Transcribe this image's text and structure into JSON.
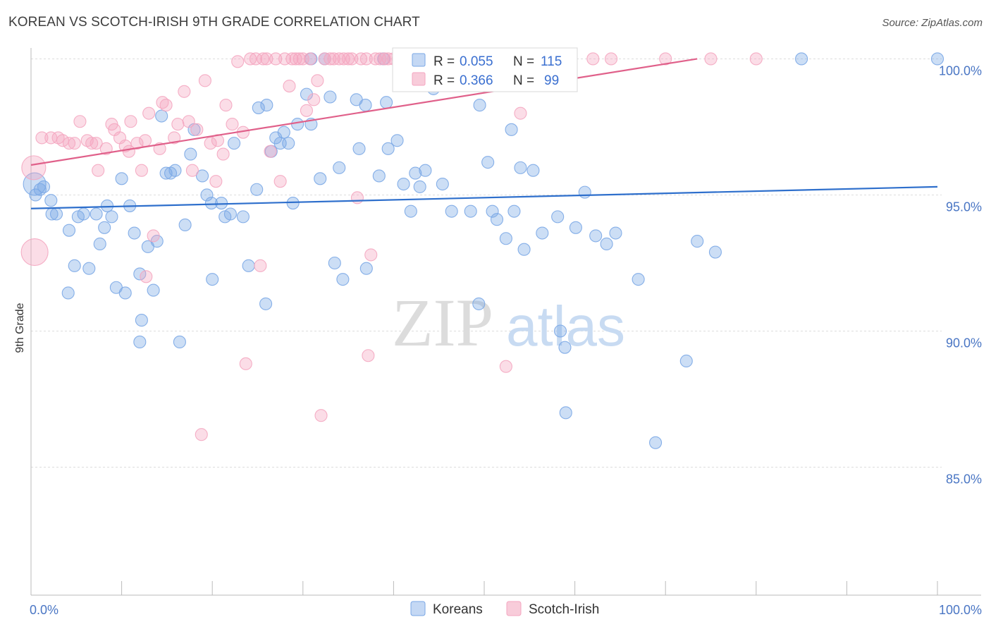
{
  "title": "KOREAN VS SCOTCH-IRISH 9TH GRADE CORRELATION CHART",
  "source": "Source: ZipAtlas.com",
  "watermark": {
    "zip": "ZIP",
    "atlas": "atlas"
  },
  "chart_data": {
    "type": "scatter",
    "xlabel": "",
    "ylabel": "9th Grade",
    "xlim": [
      0,
      100
    ],
    "ylim": [
      80.3,
      100.4
    ],
    "x_tick_labels": [
      {
        "value": 0,
        "label": "0.0%"
      },
      {
        "value": 100,
        "label": "100.0%"
      }
    ],
    "y_ticks": [
      {
        "value": 100,
        "label": "100.0%"
      },
      {
        "value": 95,
        "label": "95.0%"
      },
      {
        "value": 90,
        "label": "90.0%"
      },
      {
        "value": 85,
        "label": "85.0%"
      }
    ],
    "grid": true,
    "legend": {
      "placement": "top-center",
      "rows": [
        {
          "r_label": "R =",
          "r_value": "0.055",
          "n_label": "N =",
          "n_value": "115"
        },
        {
          "r_label": "R =",
          "r_value": "0.366",
          "n_label": "N =",
          "n_value": "99"
        }
      ]
    },
    "series": [
      {
        "name": "Koreans",
        "color": "#7aa7e6",
        "line_color": "#2e6fcc",
        "trend": {
          "x0": 0,
          "y0": 94.5,
          "x1": 100,
          "y1": 95.3
        },
        "points": [
          [
            0.4,
            95.4
          ],
          [
            0.5,
            95.0
          ],
          [
            1.0,
            95.2
          ],
          [
            1.4,
            95.3
          ],
          [
            2.2,
            94.8
          ],
          [
            2.3,
            94.3
          ],
          [
            2.8,
            94.3
          ],
          [
            4.2,
            93.7
          ],
          [
            4.8,
            92.4
          ],
          [
            4.1,
            91.4
          ],
          [
            5.2,
            94.2
          ],
          [
            5.8,
            94.3
          ],
          [
            6.4,
            92.3
          ],
          [
            7.2,
            94.3
          ],
          [
            7.6,
            93.2
          ],
          [
            8.1,
            93.8
          ],
          [
            8.4,
            94.6
          ],
          [
            8.9,
            94.2
          ],
          [
            9.4,
            91.6
          ],
          [
            10.0,
            95.6
          ],
          [
            10.4,
            91.4
          ],
          [
            10.9,
            94.6
          ],
          [
            11.4,
            93.6
          ],
          [
            12.0,
            92.1
          ],
          [
            12.2,
            90.4
          ],
          [
            12.0,
            89.6
          ],
          [
            12.9,
            93.1
          ],
          [
            13.5,
            91.5
          ],
          [
            13.9,
            93.3
          ],
          [
            14.4,
            97.9
          ],
          [
            14.9,
            95.8
          ],
          [
            15.4,
            95.8
          ],
          [
            15.9,
            95.9
          ],
          [
            16.4,
            89.6
          ],
          [
            17.0,
            93.9
          ],
          [
            17.6,
            96.5
          ],
          [
            18.0,
            97.4
          ],
          [
            18.9,
            95.7
          ],
          [
            19.4,
            95.0
          ],
          [
            19.9,
            94.7
          ],
          [
            20.0,
            91.9
          ],
          [
            21.0,
            94.7
          ],
          [
            21.4,
            94.2
          ],
          [
            22.0,
            94.3
          ],
          [
            22.4,
            96.9
          ],
          [
            23.4,
            94.2
          ],
          [
            24.0,
            92.4
          ],
          [
            24.9,
            95.2
          ],
          [
            25.1,
            98.2
          ],
          [
            25.9,
            91.0
          ],
          [
            26.0,
            98.3
          ],
          [
            26.5,
            96.6
          ],
          [
            27.0,
            97.1
          ],
          [
            27.5,
            96.9
          ],
          [
            27.9,
            97.3
          ],
          [
            28.4,
            96.9
          ],
          [
            28.9,
            94.7
          ],
          [
            29.4,
            97.6
          ],
          [
            30.4,
            98.7
          ],
          [
            30.9,
            97.6
          ],
          [
            30.9,
            100.0
          ],
          [
            31.9,
            95.6
          ],
          [
            32.4,
            100.0
          ],
          [
            33.0,
            98.6
          ],
          [
            33.5,
            92.5
          ],
          [
            34.0,
            96.0
          ],
          [
            34.4,
            91.9
          ],
          [
            35.9,
            98.5
          ],
          [
            36.2,
            96.7
          ],
          [
            36.9,
            98.3
          ],
          [
            37.0,
            92.3
          ],
          [
            38.4,
            95.7
          ],
          [
            38.9,
            100.0
          ],
          [
            39.2,
            98.4
          ],
          [
            39.4,
            96.7
          ],
          [
            40.4,
            97.0
          ],
          [
            40.9,
            100.0
          ],
          [
            41.1,
            95.4
          ],
          [
            41.9,
            94.4
          ],
          [
            42.4,
            95.8
          ],
          [
            42.9,
            95.3
          ],
          [
            43.5,
            95.9
          ],
          [
            44.4,
            98.9
          ],
          [
            45.4,
            95.4
          ],
          [
            46.4,
            94.4
          ],
          [
            48.5,
            94.4
          ],
          [
            49.4,
            91.0
          ],
          [
            49.5,
            98.3
          ],
          [
            50.4,
            96.2
          ],
          [
            50.9,
            94.4
          ],
          [
            51.4,
            94.1
          ],
          [
            52.4,
            93.4
          ],
          [
            53.3,
            94.4
          ],
          [
            54.0,
            96.0
          ],
          [
            54.4,
            93.0
          ],
          [
            55.4,
            95.9
          ],
          [
            55.8,
            100.0
          ],
          [
            56.4,
            93.6
          ],
          [
            58.1,
            94.2
          ],
          [
            58.4,
            90.0
          ],
          [
            58.9,
            89.4
          ],
          [
            59.0,
            87.0
          ],
          [
            60.1,
            93.8
          ],
          [
            61.1,
            95.1
          ],
          [
            62.3,
            93.5
          ],
          [
            63.5,
            93.2
          ],
          [
            64.5,
            93.6
          ],
          [
            67.0,
            91.9
          ],
          [
            68.9,
            85.9
          ],
          [
            72.3,
            88.9
          ],
          [
            73.5,
            93.3
          ],
          [
            75.5,
            92.9
          ],
          [
            85.0,
            100.0
          ],
          [
            100.0,
            100.0
          ],
          [
            53.0,
            97.4
          ]
        ]
      },
      {
        "name": "Scotch-Irish",
        "color": "#f4a6c0",
        "line_color": "#e0608a",
        "trend": {
          "x0": 0,
          "y0": 96.1,
          "x1": 73.5,
          "y1": 100.0
        },
        "points": [
          [
            0.3,
            96.0
          ],
          [
            0.4,
            92.9
          ],
          [
            1.2,
            97.1
          ],
          [
            2.2,
            97.1
          ],
          [
            3.0,
            97.1
          ],
          [
            3.5,
            97.0
          ],
          [
            4.2,
            96.9
          ],
          [
            4.8,
            96.9
          ],
          [
            5.4,
            97.7
          ],
          [
            6.2,
            97.0
          ],
          [
            6.7,
            96.9
          ],
          [
            7.2,
            96.9
          ],
          [
            7.4,
            95.9
          ],
          [
            8.3,
            96.7
          ],
          [
            8.9,
            97.6
          ],
          [
            9.2,
            97.4
          ],
          [
            9.8,
            97.1
          ],
          [
            10.4,
            96.8
          ],
          [
            10.8,
            96.6
          ],
          [
            11.0,
            97.7
          ],
          [
            11.7,
            96.9
          ],
          [
            12.2,
            95.9
          ],
          [
            12.6,
            97.0
          ],
          [
            12.7,
            92.0
          ],
          [
            13.0,
            98.0
          ],
          [
            13.5,
            93.5
          ],
          [
            14.2,
            96.7
          ],
          [
            14.5,
            98.4
          ],
          [
            14.9,
            98.3
          ],
          [
            15.8,
            97.1
          ],
          [
            16.2,
            97.6
          ],
          [
            16.9,
            98.8
          ],
          [
            17.4,
            97.7
          ],
          [
            17.8,
            95.9
          ],
          [
            18.3,
            97.4
          ],
          [
            18.8,
            86.2
          ],
          [
            19.2,
            99.2
          ],
          [
            19.8,
            96.9
          ],
          [
            20.4,
            95.5
          ],
          [
            20.6,
            97.0
          ],
          [
            21.2,
            96.5
          ],
          [
            21.5,
            98.3
          ],
          [
            22.2,
            97.6
          ],
          [
            22.8,
            99.9
          ],
          [
            23.4,
            97.3
          ],
          [
            23.7,
            88.8
          ],
          [
            24.2,
            100.0
          ],
          [
            24.8,
            100.0
          ],
          [
            25.3,
            92.4
          ],
          [
            25.6,
            100.0
          ],
          [
            26.0,
            100.0
          ],
          [
            26.4,
            96.6
          ],
          [
            27.0,
            100.0
          ],
          [
            27.5,
            95.5
          ],
          [
            28.0,
            100.0
          ],
          [
            28.5,
            99.0
          ],
          [
            28.8,
            100.0
          ],
          [
            29.2,
            100.0
          ],
          [
            29.6,
            100.0
          ],
          [
            30.0,
            100.0
          ],
          [
            30.4,
            98.1
          ],
          [
            30.8,
            100.0
          ],
          [
            31.2,
            98.5
          ],
          [
            31.6,
            99.2
          ],
          [
            32.0,
            86.9
          ],
          [
            32.4,
            100.0
          ],
          [
            33.0,
            100.0
          ],
          [
            33.4,
            100.0
          ],
          [
            34.0,
            100.0
          ],
          [
            34.5,
            100.0
          ],
          [
            35.0,
            100.0
          ],
          [
            35.4,
            100.0
          ],
          [
            36.0,
            94.9
          ],
          [
            36.4,
            100.0
          ],
          [
            37.0,
            100.0
          ],
          [
            37.2,
            89.1
          ],
          [
            37.5,
            92.8
          ],
          [
            38.0,
            100.0
          ],
          [
            38.5,
            100.0
          ],
          [
            39.0,
            100.0
          ],
          [
            39.4,
            100.0
          ],
          [
            40.0,
            100.0
          ],
          [
            40.5,
            100.0
          ],
          [
            41.0,
            100.0
          ],
          [
            45.4,
            100.0
          ],
          [
            46.0,
            100.0
          ],
          [
            47.0,
            100.0
          ],
          [
            48.0,
            100.0
          ],
          [
            50.0,
            100.0
          ],
          [
            51.0,
            100.0
          ],
          [
            52.4,
            88.7
          ],
          [
            53.4,
            100.0
          ],
          [
            54.0,
            98.0
          ],
          [
            58.0,
            100.0
          ],
          [
            62.0,
            100.0
          ],
          [
            64.0,
            100.0
          ],
          [
            70.0,
            100.0
          ],
          [
            75.0,
            100.0
          ],
          [
            80.0,
            100.0
          ]
        ]
      }
    ]
  }
}
